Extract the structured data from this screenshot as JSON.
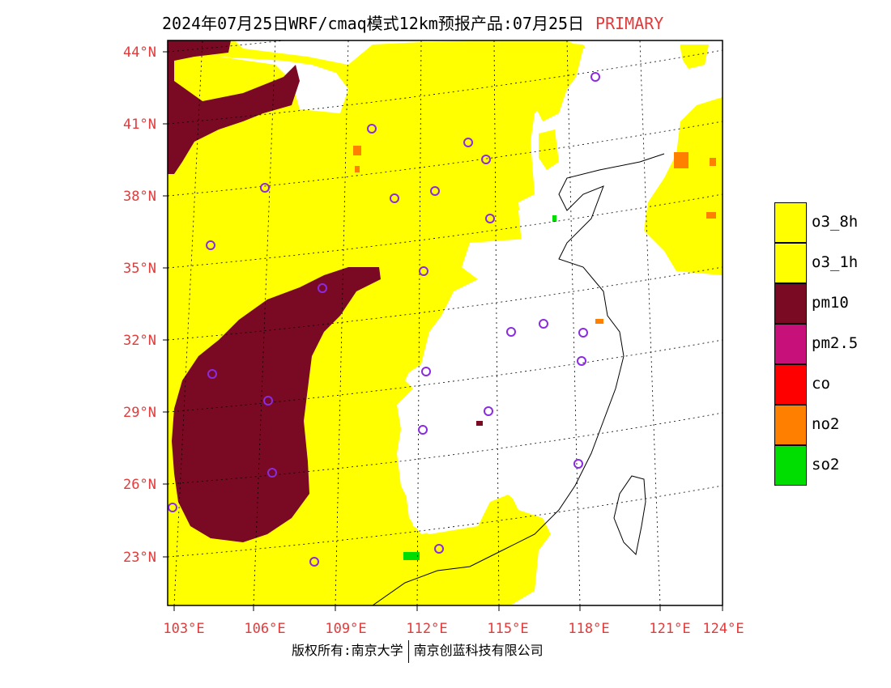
{
  "title": {
    "main": "2024年07月25日WRF/cmaq模式12km预报产品:07月25日",
    "tag": "PRIMARY"
  },
  "axes": {
    "lat_labels": [
      "23°N",
      "26°N",
      "29°N",
      "32°N",
      "35°N",
      "38°N",
      "41°N",
      "44°N"
    ],
    "lon_labels": [
      "103°E",
      "106°E",
      "109°E",
      "112°E",
      "115°E",
      "118°E",
      "121°E",
      "124°E"
    ]
  },
  "legend": [
    {
      "label": "o3_8h",
      "color": "#ffff00"
    },
    {
      "label": "o3_1h",
      "color": "#ffff00"
    },
    {
      "label": "pm10",
      "color": "#7a0a24"
    },
    {
      "label": "pm2.5",
      "color": "#c8107a"
    },
    {
      "label": "co",
      "color": "#ff0000"
    },
    {
      "label": "no2",
      "color": "#ff7f00"
    },
    {
      "label": "so2",
      "color": "#00dd00"
    }
  ],
  "footer": {
    "left": "版权所有:南京大学",
    "right": "南京创蓝科技有限公司"
  }
}
